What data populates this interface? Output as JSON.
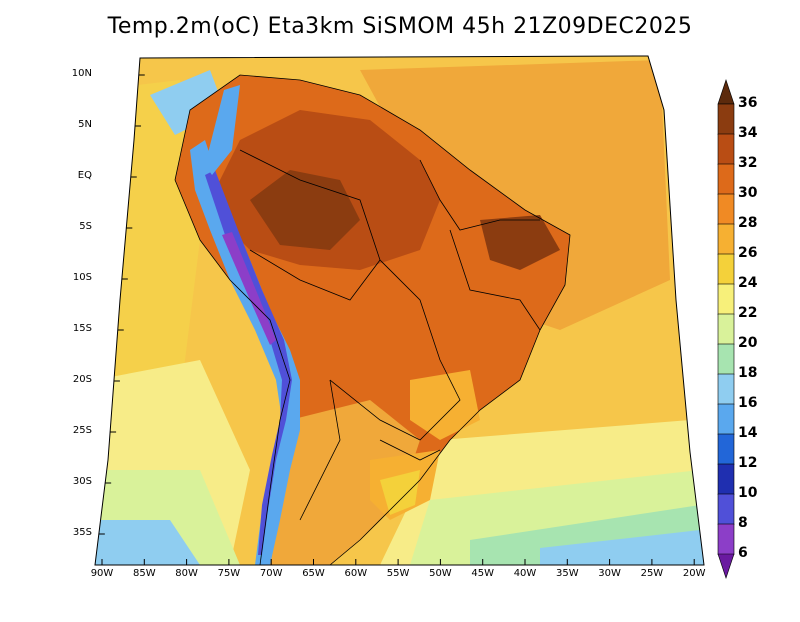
{
  "title": "Temp.2m(oC) Eta3km SiSMOM 45h 21Z09DEC2025",
  "lat_ticks": [
    "10N",
    "5N",
    "EQ",
    "5S",
    "10S",
    "15S",
    "20S",
    "25S",
    "30S",
    "35S"
  ],
  "lon_ticks": [
    "90W",
    "85W",
    "80W",
    "75W",
    "70W",
    "65W",
    "60W",
    "55W",
    "50W",
    "45W",
    "40W",
    "35W",
    "30W",
    "25W",
    "20W"
  ],
  "colorbar": {
    "labels": [
      "36",
      "34",
      "32",
      "30",
      "28",
      "26",
      "24",
      "22",
      "20",
      "18",
      "16",
      "14",
      "12",
      "10",
      "8",
      "6"
    ],
    "colors": [
      "#5c2a0c",
      "#8b3c10",
      "#b94d14",
      "#dd6a1a",
      "#f08a24",
      "#f6b032",
      "#f4d13a",
      "#f7f07a",
      "#d9f29a",
      "#a7e4b0",
      "#8fcdf0",
      "#5aa8ee",
      "#2266d8",
      "#1f2fb0",
      "#5050d8",
      "#8c3ec8",
      "#6a1aa0"
    ]
  },
  "field": {
    "ocean_color": "#f6c64a",
    "land_hot_color": "#d8691c",
    "amazon_color": "#b25018",
    "andes_cold_color": "#3070d8",
    "south_cool_color": "#9ee0c0"
  }
}
